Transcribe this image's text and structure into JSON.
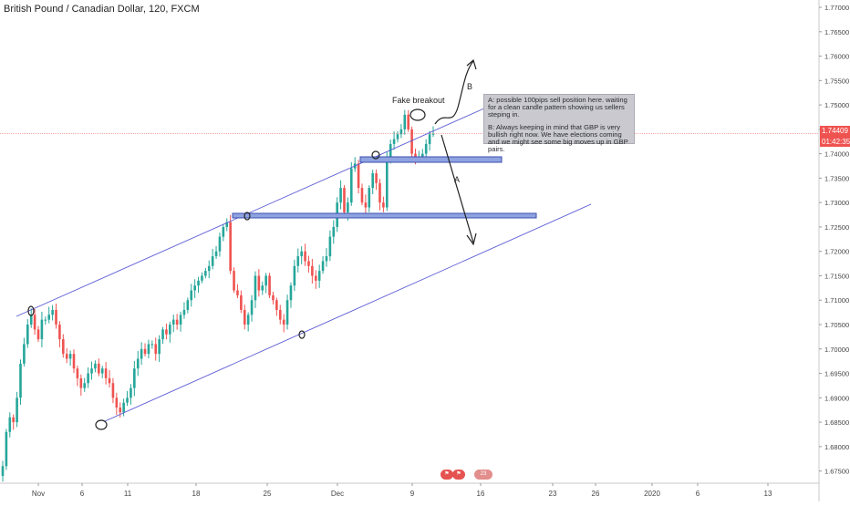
{
  "header": {
    "symbol": "British Pound / Canadian Dollar, 120, FXCM"
  },
  "chart_data": {
    "type": "candlestick",
    "symbol": "British Pound / Canadian Dollar",
    "timeframe": "120",
    "exchange": "FXCM",
    "ylim": [
      1.6725,
      1.7715
    ],
    "y_ticks": [
      "1.67500",
      "1.68000",
      "1.68500",
      "1.69000",
      "1.69500",
      "1.70000",
      "1.70500",
      "1.71000",
      "1.71500",
      "1.72000",
      "1.72500",
      "1.73000",
      "1.73500",
      "1.74000",
      "1.74500",
      "1.75000",
      "1.75500",
      "1.76000",
      "1.76500",
      "1.77000"
    ],
    "x_ticks": [
      "Nov",
      "6",
      "11",
      "18",
      "25",
      "Dec",
      "9",
      "16",
      "23",
      "26",
      "2020",
      "6",
      "13"
    ],
    "last_price": "1.74409",
    "countdown": "01:42:35",
    "bull_color": "#26a69a",
    "bear_color": "#ef5350",
    "closes": [
      1.676,
      1.683,
      1.686,
      1.685,
      1.69,
      1.697,
      1.701,
      1.705,
      1.707,
      1.704,
      1.702,
      1.706,
      1.706,
      1.707,
      1.708,
      1.705,
      1.702,
      1.699,
      1.698,
      1.699,
      1.696,
      1.694,
      1.692,
      1.693,
      1.695,
      1.696,
      1.697,
      1.695,
      1.696,
      1.694,
      1.693,
      1.69,
      1.688,
      1.687,
      1.689,
      1.69,
      1.692,
      1.696,
      1.698,
      1.7,
      1.699,
      1.701,
      1.701,
      1.699,
      1.702,
      1.704,
      1.703,
      1.705,
      1.706,
      1.705,
      1.707,
      1.708,
      1.71,
      1.712,
      1.713,
      1.714,
      1.715,
      1.716,
      1.717,
      1.719,
      1.72,
      1.723,
      1.725,
      1.726,
      1.716,
      1.712,
      1.711,
      1.708,
      1.705,
      1.707,
      1.71,
      1.715,
      1.712,
      1.713,
      1.715,
      1.711,
      1.71,
      1.708,
      1.706,
      1.705,
      1.71,
      1.713,
      1.717,
      1.719,
      1.72,
      1.718,
      1.717,
      1.715,
      1.714,
      1.716,
      1.718,
      1.719,
      1.723,
      1.725,
      1.73,
      1.733,
      1.728,
      1.73,
      1.737,
      1.738,
      1.733,
      1.73,
      1.729,
      1.733,
      1.736,
      1.734,
      1.73,
      1.729,
      1.739,
      1.742,
      1.743,
      1.744,
      1.745,
      1.748,
      1.745,
      1.74,
      1.739,
      1.739,
      1.74,
      1.742,
      1.744,
      1.74409
    ],
    "annotations": {
      "fake_breakout": "Fake breakout",
      "path_a": "A",
      "path_b": "B",
      "note_a": "A: possible 100pips sell position here. waiting for a clean candle pattern showing us sellers steping in.",
      "note_b": "B: Always keeping in mind that GBP is very bullish right now. We have elections coming and we might see some big moves up in GBP pairs.",
      "channel_upper": [
        [
          1.7069,
          "2019-10-30"
        ],
        [
          1.7505,
          "2019-12-12"
        ]
      ],
      "channel_lower": [
        [
          1.6844,
          "2019-11-07"
        ],
        [
          1.7295,
          "2019-12-22"
        ]
      ],
      "resistance_zone_1": [
        1.7375,
        1.7385
      ],
      "resistance_zone_2": [
        1.7265,
        1.7275
      ]
    },
    "badges": {
      "flag_icon": "flag-icon",
      "countdown_marker": "23"
    }
  },
  "axis": {
    "last_price_label": "1.74409",
    "countdown_label": "01:42:35"
  }
}
